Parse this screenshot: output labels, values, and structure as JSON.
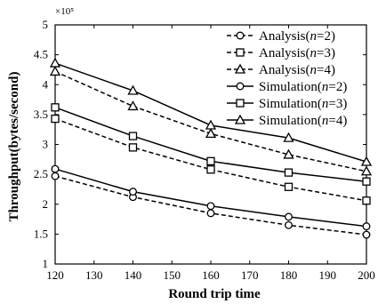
{
  "chart_data": {
    "type": "line",
    "title": "",
    "xlabel": "Round trip time",
    "ylabel": "Throughput(bytes/second)",
    "y_multiplier_label": "×10⁵",
    "xlim": [
      120,
      200
    ],
    "ylim": [
      1,
      5
    ],
    "x_ticks": [
      "120",
      "130",
      "140",
      "150",
      "160",
      "170",
      "180",
      "190",
      "200"
    ],
    "y_ticks": [
      "1",
      "1.5",
      "2",
      "2.5",
      "3",
      "3.5",
      "4",
      "4.5",
      "5"
    ],
    "x": [
      120,
      140,
      160,
      180,
      200
    ],
    "grid": false,
    "legend_position": "top-right",
    "series": [
      {
        "name": "Analysis",
        "n": "2",
        "marker": "circle",
        "dash": "dashed",
        "values": [
          2.47,
          2.12,
          1.85,
          1.65,
          1.49
        ]
      },
      {
        "name": "Analysis",
        "n": "3",
        "marker": "square",
        "dash": "dashed",
        "values": [
          3.43,
          2.95,
          2.58,
          2.29,
          2.06
        ]
      },
      {
        "name": "Analysis",
        "n": "4",
        "marker": "triangle",
        "dash": "dashed",
        "values": [
          4.22,
          3.64,
          3.18,
          2.83,
          2.55
        ]
      },
      {
        "name": "Simulation",
        "n": "2",
        "marker": "circle",
        "dash": "solid",
        "values": [
          2.59,
          2.21,
          1.97,
          1.79,
          1.63
        ]
      },
      {
        "name": "Simulation",
        "n": "3",
        "marker": "square",
        "dash": "solid",
        "values": [
          3.62,
          3.14,
          2.72,
          2.53,
          2.38
        ]
      },
      {
        "name": "Simulation",
        "n": "4",
        "marker": "triangle",
        "dash": "solid",
        "values": [
          4.36,
          3.9,
          3.32,
          3.11,
          2.71
        ]
      }
    ]
  }
}
